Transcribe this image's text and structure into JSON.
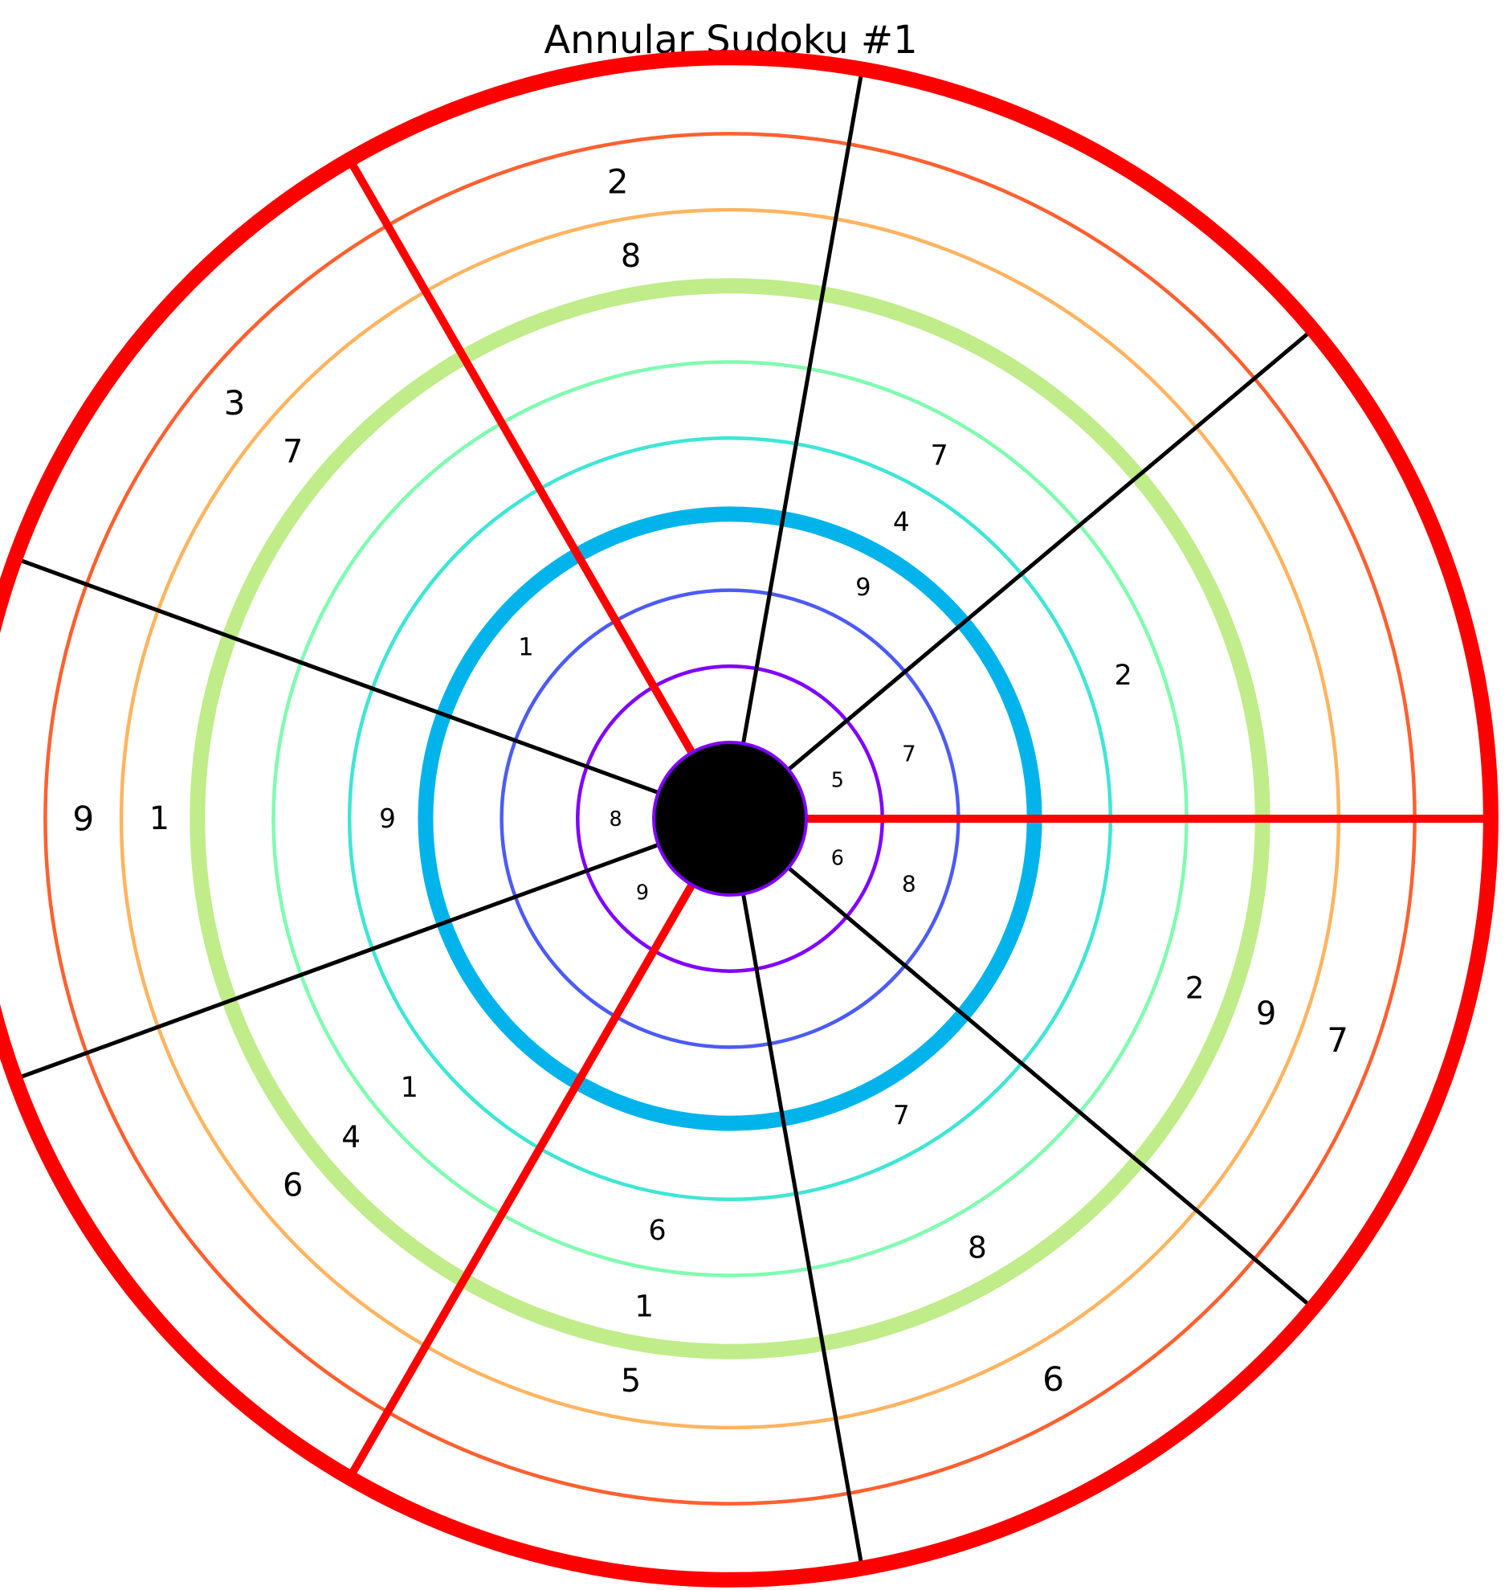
{
  "title": "Annular Sudoku #1",
  "grid": {
    "rings": 9,
    "sectors": 9,
    "ring_colors": [
      "#8000ff",
      "#4c5bf5",
      "#00b4eb",
      "#3ee6d4",
      "#7ffcb0",
      "#c0ec8a",
      "#ffb460",
      "#ff6030",
      "#ff0000"
    ],
    "thick_rings": [
      0,
      3,
      6,
      9
    ],
    "sector_line_color": "#000000",
    "box_line_color": "#ff0000",
    "box_sectors": [
      0,
      3,
      6
    ],
    "center_fill": "#000000"
  },
  "clues": [
    {
      "ring": 1,
      "sector": 0,
      "value": "5"
    },
    {
      "ring": 1,
      "sector": 4,
      "value": "8"
    },
    {
      "ring": 1,
      "sector": 5,
      "value": "9"
    },
    {
      "ring": 1,
      "sector": 8,
      "value": "6"
    },
    {
      "ring": 2,
      "sector": 0,
      "value": "7"
    },
    {
      "ring": 2,
      "sector": 8,
      "value": "8"
    },
    {
      "ring": 3,
      "sector": 1,
      "value": "9"
    },
    {
      "ring": 3,
      "sector": 3,
      "value": "1"
    },
    {
      "ring": 4,
      "sector": 1,
      "value": "4"
    },
    {
      "ring": 4,
      "sector": 4,
      "value": "9"
    },
    {
      "ring": 4,
      "sector": 7,
      "value": "7"
    },
    {
      "ring": 5,
      "sector": 0,
      "value": "2"
    },
    {
      "ring": 5,
      "sector": 1,
      "value": "7"
    },
    {
      "ring": 5,
      "sector": 5,
      "value": "1"
    },
    {
      "ring": 5,
      "sector": 6,
      "value": "6"
    },
    {
      "ring": 6,
      "sector": 5,
      "value": "4"
    },
    {
      "ring": 6,
      "sector": 6,
      "value": "1"
    },
    {
      "ring": 6,
      "sector": 7,
      "value": "8"
    },
    {
      "ring": 6,
      "sector": 8,
      "value": "2"
    },
    {
      "ring": 7,
      "sector": 2,
      "value": "8"
    },
    {
      "ring": 7,
      "sector": 3,
      "value": "7"
    },
    {
      "ring": 7,
      "sector": 4,
      "value": "1"
    },
    {
      "ring": 7,
      "sector": 5,
      "value": "6"
    },
    {
      "ring": 7,
      "sector": 6,
      "value": "5"
    },
    {
      "ring": 7,
      "sector": 8,
      "value": "9"
    },
    {
      "ring": 8,
      "sector": 2,
      "value": "2"
    },
    {
      "ring": 8,
      "sector": 3,
      "value": "3"
    },
    {
      "ring": 8,
      "sector": 4,
      "value": "9"
    },
    {
      "ring": 8,
      "sector": 7,
      "value": "6"
    },
    {
      "ring": 8,
      "sector": 8,
      "value": "7"
    }
  ]
}
